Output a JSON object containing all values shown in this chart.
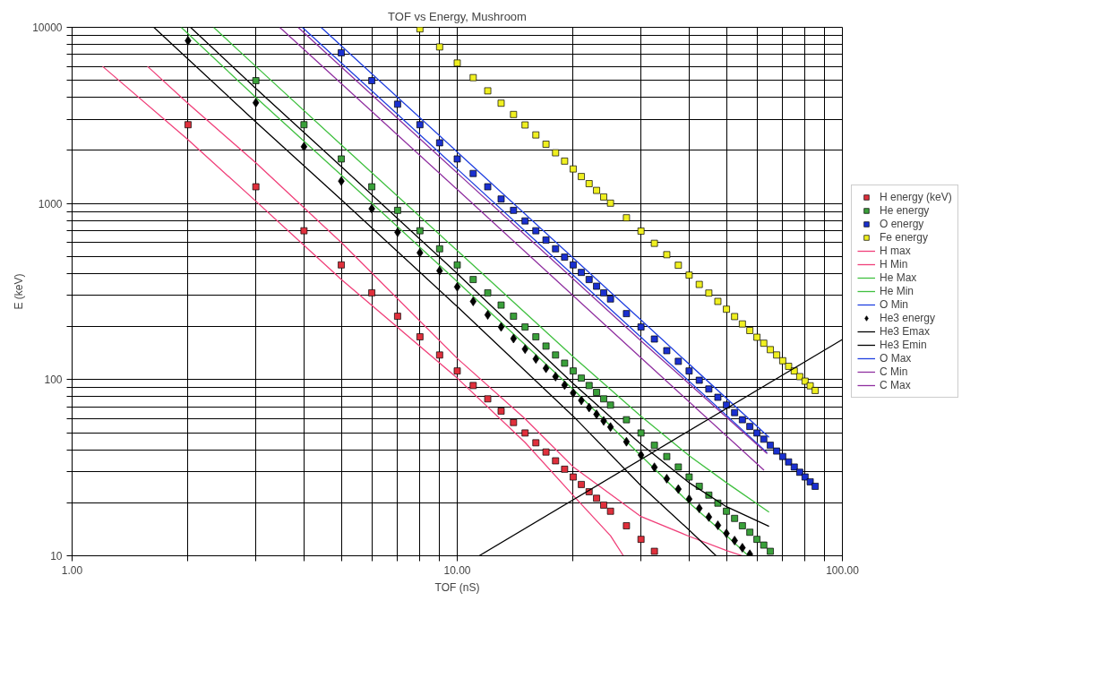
{
  "chart_data": {
    "type": "scatter",
    "title": "TOF vs Energy, Mushroom",
    "xlabel": "TOF (nS)",
    "ylabel": "E (keV)",
    "log": "xy",
    "grid": true,
    "legend": "right",
    "xlim": [
      1,
      100
    ],
    "ylim": [
      10,
      10000
    ],
    "xticks": [
      {
        "value": 1,
        "label": "1.00"
      },
      {
        "value": 2,
        "label": null
      },
      {
        "value": 3,
        "label": null
      },
      {
        "value": 4,
        "label": null
      },
      {
        "value": 5,
        "label": null
      },
      {
        "value": 6,
        "label": null
      },
      {
        "value": 7,
        "label": null
      },
      {
        "value": 8,
        "label": null
      },
      {
        "value": 9,
        "label": null
      },
      {
        "value": 10,
        "label": "10.00"
      },
      {
        "value": 20,
        "label": null
      },
      {
        "value": 30,
        "label": null
      },
      {
        "value": 40,
        "label": null
      },
      {
        "value": 50,
        "label": null
      },
      {
        "value": 60,
        "label": null
      },
      {
        "value": 70,
        "label": null
      },
      {
        "value": 80,
        "label": null
      },
      {
        "value": 90,
        "label": null
      },
      {
        "value": 100,
        "label": "100.00"
      }
    ],
    "yticks": [
      10,
      {
        "value": 20,
        "label": null
      },
      {
        "value": 30,
        "label": null
      },
      {
        "value": 40,
        "label": null
      },
      {
        "value": 50,
        "label": null
      },
      {
        "value": 60,
        "label": null
      },
      {
        "value": 70,
        "label": null
      },
      {
        "value": 80,
        "label": null
      },
      {
        "value": 90,
        "label": null
      },
      100,
      {
        "value": 200,
        "label": null
      },
      {
        "value": 300,
        "label": null
      },
      {
        "value": 400,
        "label": null
      },
      {
        "value": 500,
        "label": null
      },
      {
        "value": 600,
        "label": null
      },
      {
        "value": 700,
        "label": null
      },
      {
        "value": 800,
        "label": null
      },
      {
        "value": 900,
        "label": null
      },
      1000,
      {
        "value": 2000,
        "label": null
      },
      {
        "value": 3000,
        "label": null
      },
      {
        "value": 4000,
        "label": null
      },
      {
        "value": 5000,
        "label": null
      },
      {
        "value": 6000,
        "label": null
      },
      {
        "value": 7000,
        "label": null
      },
      {
        "value": 8000,
        "label": null
      },
      {
        "value": 9000,
        "label": null
      },
      10000
    ],
    "series": [
      {
        "name": "H energy (keV)",
        "marker": "square",
        "color": "#e0303c",
        "x": [
          2,
          3,
          4,
          5,
          6,
          7,
          8,
          9,
          10,
          11,
          12,
          13,
          14,
          15,
          16,
          17,
          18,
          19,
          20,
          21,
          22,
          23,
          24,
          25,
          27.5,
          30,
          32.5
        ],
        "values": [
          2800,
          1244,
          700,
          448,
          311,
          229,
          175,
          138,
          112,
          92.6,
          77.8,
          66.3,
          57.1,
          49.8,
          43.8,
          38.8,
          34.6,
          31.0,
          28.0,
          25.4,
          23.1,
          21.2,
          19.4,
          17.9,
          14.8,
          12.4,
          10.6
        ]
      },
      {
        "name": "He energy",
        "marker": "square",
        "color": "#3aa03a",
        "x": [
          3,
          4,
          5,
          6,
          7,
          8,
          9,
          10,
          11,
          12,
          13,
          14,
          15,
          16,
          17,
          18,
          19,
          20,
          21,
          22,
          23,
          24,
          25,
          27.5,
          30,
          32.5,
          35,
          37.5,
          40,
          42.5,
          45,
          47.5,
          50,
          52.5,
          55,
          57.5,
          60,
          62.5,
          65
        ],
        "values": [
          4980,
          2800,
          1790,
          1244,
          914,
          700,
          553,
          448,
          370,
          311,
          265,
          229,
          199,
          175,
          155,
          138,
          124,
          112,
          102,
          92.6,
          84.7,
          77.8,
          71.7,
          59.2,
          49.8,
          42.4,
          36.6,
          31.9,
          28.0,
          24.8,
          22.1,
          19.9,
          17.9,
          16.3,
          14.8,
          13.6,
          12.4,
          11.5,
          10.6
        ]
      },
      {
        "name": "O energy",
        "marker": "square",
        "color": "#1a30d0",
        "x": [
          5,
          6,
          7,
          8,
          9,
          10,
          11,
          12,
          13,
          14,
          15,
          16,
          17,
          18,
          19,
          20,
          21,
          22,
          23,
          24,
          25,
          27.5,
          30,
          32.5,
          35,
          37.5,
          40,
          42.5,
          45,
          47.5,
          50,
          52.5,
          55,
          57.5,
          60,
          62.5,
          65,
          67.5,
          70,
          72.5,
          75,
          77.5,
          80,
          82.5,
          85
        ],
        "values": [
          7170,
          4980,
          3660,
          2800,
          2210,
          1790,
          1480,
          1244,
          1060,
          914,
          796,
          700,
          620,
          553,
          496,
          448,
          406,
          370,
          339,
          311,
          287,
          237,
          199,
          170,
          146,
          127,
          112,
          99.2,
          88.5,
          79.4,
          71.7,
          65.0,
          59.2,
          54.2,
          49.8,
          45.9,
          42.4,
          39.3,
          36.6,
          34.1,
          31.9,
          29.8,
          28.0,
          26.3,
          24.8
        ]
      },
      {
        "name": "Fe energy",
        "marker": "square",
        "color": "#f0f020",
        "x": [
          8,
          9,
          10,
          11,
          12,
          13,
          14,
          15,
          16,
          17,
          18,
          19,
          20,
          21,
          22,
          23,
          24,
          25,
          27.5,
          30,
          32.5,
          35,
          37.5,
          40,
          42.5,
          45,
          47.5,
          50,
          52.5,
          55,
          57.5,
          60,
          62.5,
          65,
          67.5,
          70,
          72.5,
          75,
          77.5,
          80,
          82.5,
          85
        ],
        "values": [
          9800,
          7740,
          6270,
          5180,
          4360,
          3710,
          3200,
          2790,
          2450,
          2170,
          1940,
          1740,
          1570,
          1422,
          1296,
          1186,
          1089,
          1004,
          829,
          697,
          594,
          512,
          446,
          392,
          347,
          310,
          278,
          251,
          228,
          207,
          190,
          174,
          161,
          148,
          138,
          128,
          119,
          112,
          104,
          98.0,
          92.2,
          86.8
        ]
      },
      {
        "name": "H max",
        "type": "line",
        "color": "#f0407a",
        "x": [
          1.57,
          2,
          3,
          5,
          10,
          15,
          20,
          30,
          40,
          50,
          55
        ],
        "values": [
          6000,
          3700,
          1700,
          600,
          132,
          60,
          32,
          16.7,
          12.9,
          10.7,
          10
        ]
      },
      {
        "name": "H Min",
        "type": "line",
        "color": "#f0407a",
        "x": [
          1.2,
          2,
          3,
          5,
          10,
          15,
          20,
          25,
          27
        ],
        "values": [
          6000,
          2300,
          1030,
          370,
          102,
          44,
          22,
          13,
          10
        ]
      },
      {
        "name": "He Max",
        "type": "line",
        "color": "#40c040",
        "x": [
          2.33,
          3,
          5,
          10,
          20,
          30,
          40,
          50,
          64.5
        ],
        "values": [
          10000,
          6000,
          2150,
          540,
          135,
          62,
          37,
          26,
          17.7
        ]
      },
      {
        "name": "He Min",
        "type": "line",
        "color": "#40c040",
        "x": [
          1.92,
          3,
          5,
          10,
          20,
          30,
          40,
          50,
          57
        ],
        "values": [
          10000,
          4000,
          1450,
          360,
          88,
          37,
          20,
          13,
          10
        ]
      },
      {
        "name": "O Min",
        "type": "line",
        "color": "#2040e0",
        "x": [
          3.96,
          10,
          30,
          63.8
        ],
        "values": [
          10000,
          1570,
          174,
          38.5
        ]
      },
      {
        "name": "He3 energy",
        "marker": "diamond",
        "color": "#000000",
        "x": [
          2,
          3,
          4,
          5,
          6,
          7,
          8,
          9,
          10,
          11,
          12,
          13,
          14,
          15,
          16,
          17,
          18,
          19,
          20,
          21,
          22,
          23,
          24,
          25,
          27.5,
          30,
          32.5,
          35,
          37.5,
          40,
          42.5,
          45,
          47.5,
          50,
          52.5,
          55,
          57.5
        ],
        "values": [
          8400,
          3730,
          2100,
          1340,
          933,
          686,
          525,
          415,
          336,
          278,
          233,
          199,
          171,
          149,
          131,
          116,
          104,
          93.1,
          84.0,
          76.2,
          69.4,
          63.5,
          58.3,
          53.8,
          44.4,
          37.3,
          31.8,
          27.4,
          23.9,
          21.0,
          18.6,
          16.6,
          14.9,
          13.4,
          12.2,
          11.1,
          10.2
        ]
      },
      {
        "name": "He3 Emax",
        "type": "line",
        "color": "#000000",
        "x": [
          2.03,
          3,
          5,
          10,
          20,
          30,
          40,
          50,
          64.5
        ],
        "values": [
          10000,
          4500,
          1620,
          400,
          95,
          43,
          26,
          19,
          14.7
        ]
      },
      {
        "name": "He3 Emin",
        "type": "line",
        "color": "#000000",
        "x": [
          1.63,
          3,
          5,
          10,
          20,
          30,
          40,
          47
        ],
        "values": [
          10000,
          2900,
          1050,
          260,
          62,
          25,
          14,
          10
        ]
      },
      {
        "name": "O Max",
        "type": "line",
        "color": "#2040e0",
        "x": [
          4.43,
          10,
          30,
          64.5
        ],
        "values": [
          10000,
          1960,
          218,
          47
        ]
      },
      {
        "name": "C Min",
        "type": "line",
        "color": "#9030a0",
        "x": [
          3.46,
          10,
          30,
          62.6
        ],
        "values": [
          10000,
          1200,
          133,
          30.6
        ]
      },
      {
        "name": "C Max",
        "type": "line",
        "color": "#9030a0",
        "x": [
          3.86,
          10,
          30,
          63.8
        ],
        "values": [
          10000,
          1490,
          166,
          38
        ]
      },
      {
        "type": "line",
        "color": "#000000",
        "x": [
          11.4,
          100
        ],
        "values": [
          10,
          169
        ]
      }
    ]
  }
}
